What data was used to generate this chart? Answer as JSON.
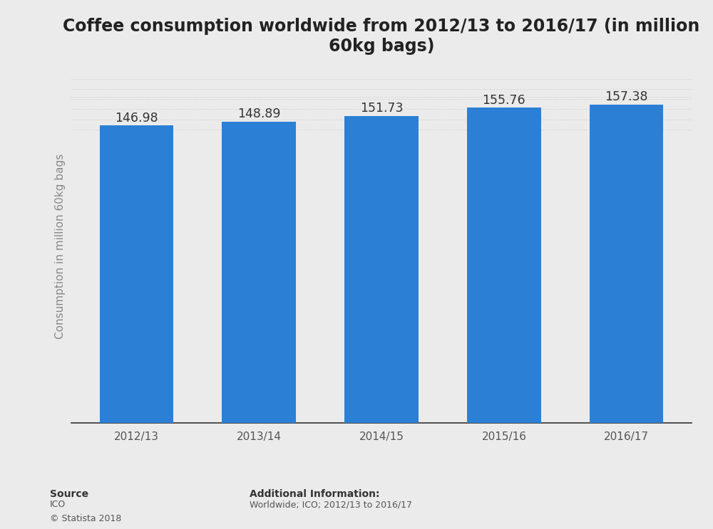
{
  "title": "Coffee consumption worldwide from 2012/13 to 2016/17 (in million\n60kg bags)",
  "categories": [
    "2012/13",
    "2013/14",
    "2014/15",
    "2015/16",
    "2016/17"
  ],
  "values": [
    146.98,
    148.89,
    151.73,
    155.76,
    157.38
  ],
  "bar_color": "#2b80d6",
  "ylabel": "Consumption in million 60kg bags",
  "background_color": "#ebebeb",
  "plot_bg_color": "#ebebeb",
  "title_fontsize": 17,
  "label_fontsize": 11,
  "bar_label_fontsize": 12.5,
  "source_label": "Source",
  "source_body": "ICO\n© Statista 2018",
  "additional_label": "Additional Information:",
  "additional_body": "Worldwide; ICO; 2012/13 to 2016/17",
  "ylim_min": 0,
  "ylim_max": 175,
  "grid_color": "#cccccc",
  "grid_positions": [
    145,
    150,
    155,
    160,
    165,
    170
  ],
  "bar_width": 0.6,
  "xlabel_color": "#555555",
  "ylabel_color": "#888888",
  "value_label_color": "#333333",
  "spine_bottom_color": "#333333"
}
